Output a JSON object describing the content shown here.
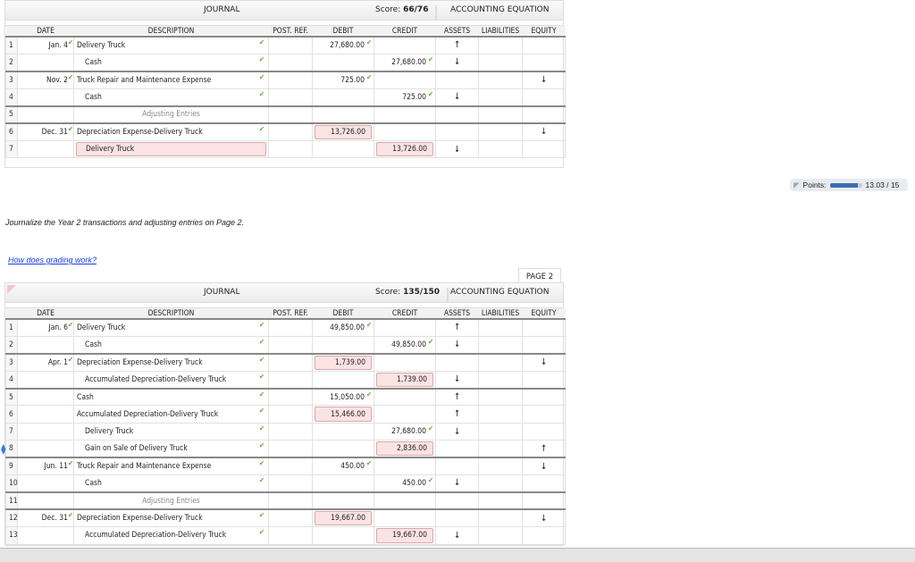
{
  "journal1": {
    "title": "JOURNAL",
    "score_label": "Score:",
    "score": "66/76",
    "equation_title": "ACCOUNTING EQUATION",
    "rows": [
      {
        "n": "1",
        "date": "Jan. 4",
        "desc": "Delivery Truck",
        "indent": false,
        "debit": "27,680.00",
        "credit": "",
        "a": "↑",
        "l": "",
        "e": "",
        "sep": false,
        "ok": true
      },
      {
        "n": "2",
        "date": "",
        "desc": "Cash",
        "indent": true,
        "debit": "",
        "credit": "27,680.00",
        "a": "↓",
        "l": "",
        "e": "",
        "ok": true
      },
      {
        "n": "3",
        "date": "Nov. 2",
        "desc": "Truck Repair and Maintenance Expense",
        "indent": false,
        "debit": "725.00",
        "credit": "",
        "a": "",
        "l": "",
        "e": "↓",
        "sep": true,
        "ok": true
      },
      {
        "n": "4",
        "date": "",
        "desc": "Cash",
        "indent": true,
        "debit": "",
        "credit": "725.00",
        "a": "↓",
        "l": "",
        "e": "",
        "ok": true
      },
      {
        "n": "5",
        "date": "",
        "desc": "Adjusting Entries",
        "center": true,
        "debit": "",
        "credit": "",
        "a": "",
        "l": "",
        "e": "",
        "sep": true
      },
      {
        "n": "6",
        "date": "Dec. 31",
        "desc": "Depreciation Expense-Delivery Truck",
        "indent": false,
        "debit": "13,726.00",
        "debitErr": true,
        "credit": "",
        "a": "",
        "l": "",
        "e": "↓",
        "sep": true,
        "ok": true
      },
      {
        "n": "7",
        "date": "",
        "desc": "Delivery Truck",
        "indent": true,
        "descErr": true,
        "debit": "",
        "credit": "13,726.00",
        "creditErr": true,
        "a": "↓",
        "l": "",
        "e": ""
      }
    ]
  },
  "columns": [
    "DATE",
    "DESCRIPTION",
    "POST. REF.",
    "DEBIT",
    "CREDIT",
    "ASSETS",
    "LIABILITIES",
    "EQUITY"
  ],
  "points": {
    "label": "Points:",
    "value": "13.03 / 15",
    "fraction": 0.869
  },
  "instruction": "Journalize the Year 2 transactions and adjusting entries on Page 2.",
  "grading_link": "How does grading work?",
  "page_tab": "PAGE 2",
  "journal2": {
    "title": "JOURNAL",
    "score_label": "Score:",
    "score": "135/150",
    "equation_title": "ACCOUNTING EQUATION",
    "rows": [
      {
        "n": "1",
        "date": "Jan. 6",
        "desc": "Delivery Truck",
        "debit": "49,850.00",
        "credit": "",
        "a": "↑",
        "l": "",
        "e": "",
        "ok": true
      },
      {
        "n": "2",
        "date": "",
        "desc": "Cash",
        "indent": true,
        "debit": "",
        "credit": "49,850.00",
        "a": "↓",
        "l": "",
        "e": "",
        "ok": true
      },
      {
        "n": "3",
        "date": "Apr. 1",
        "desc": "Depreciation Expense-Delivery Truck",
        "debit": "1,739.00",
        "debitErr": true,
        "credit": "",
        "a": "",
        "l": "",
        "e": "↓",
        "sep": true,
        "ok": true
      },
      {
        "n": "4",
        "date": "",
        "desc": "Accumulated Depreciation-Delivery Truck",
        "indent": true,
        "debit": "",
        "credit": "1,739.00",
        "creditErr": true,
        "a": "↓",
        "l": "",
        "e": "",
        "ok": true
      },
      {
        "n": "5",
        "date": "",
        "desc": "Cash",
        "debit": "15,050.00",
        "credit": "",
        "a": "↑",
        "l": "",
        "e": "",
        "sep": true,
        "ok": true
      },
      {
        "n": "6",
        "date": "",
        "desc": "Accumulated Depreciation-Delivery Truck",
        "debit": "15,466.00",
        "debitErr": true,
        "credit": "",
        "a": "↑",
        "l": "",
        "e": "",
        "ok": true
      },
      {
        "n": "7",
        "date": "",
        "desc": "Delivery Truck",
        "indent": true,
        "debit": "",
        "credit": "27,680.00",
        "a": "↓",
        "l": "",
        "e": "",
        "ok": true
      },
      {
        "n": "8",
        "date": "",
        "desc": "Gain on Sale of Delivery Truck",
        "indent": true,
        "debit": "",
        "credit": "2,836.00",
        "creditErr": true,
        "a": "",
        "l": "",
        "e": "↑",
        "ok": true,
        "handle": true
      },
      {
        "n": "9",
        "date": "Jun. 11",
        "desc": "Truck Repair and Maintenance Expense",
        "debit": "450.00",
        "credit": "",
        "a": "",
        "l": "",
        "e": "↓",
        "sep": true,
        "ok": true
      },
      {
        "n": "10",
        "date": "",
        "desc": "Cash",
        "indent": true,
        "debit": "",
        "credit": "450.00",
        "a": "↓",
        "l": "",
        "e": "",
        "ok": true
      },
      {
        "n": "11",
        "date": "",
        "desc": "Adjusting Entries",
        "center": true,
        "debit": "",
        "credit": "",
        "a": "",
        "l": "",
        "e": "",
        "sep": true
      },
      {
        "n": "12",
        "date": "Dec. 31",
        "desc": "Depreciation Expense-Delivery Truck",
        "debit": "19,667.00",
        "debitErr": true,
        "credit": "",
        "a": "",
        "l": "",
        "e": "↓",
        "sep": true,
        "ok": true
      },
      {
        "n": "13",
        "date": "",
        "desc": "Accumulated Depreciation-Delivery Truck",
        "indent": true,
        "debit": "",
        "credit": "19,667.00",
        "creditErr": true,
        "a": "↓",
        "l": "",
        "e": "",
        "ok": true
      }
    ]
  }
}
